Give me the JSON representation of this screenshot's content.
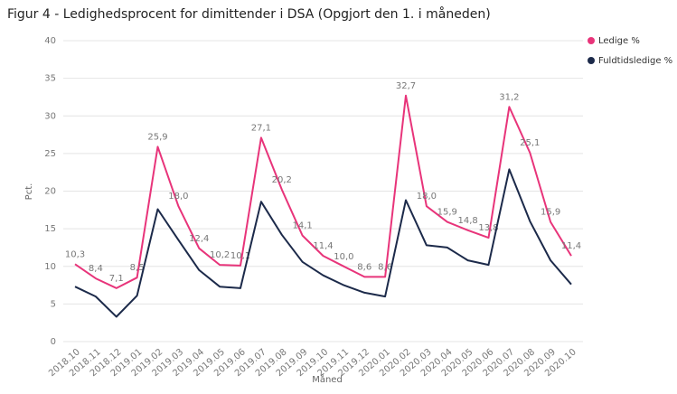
{
  "chart_data": {
    "type": "line",
    "title": "Figur 4 - Ledighedsprocent for dimittender i DSA (Opgjort den 1. i måneden)",
    "x_label": "Måned",
    "y_label": "Pct.",
    "categories": [
      "2018.10",
      "2018.11",
      "2018.12",
      "2019.01",
      "2019.02",
      "2019.03",
      "2019.04",
      "2019.05",
      "2019.06",
      "2019.07",
      "2019.08",
      "2019.09",
      "2019.10",
      "2019.11",
      "2019.12",
      "2020.01",
      "2020.02",
      "2020.03",
      "2020.04",
      "2020.05",
      "2020.06",
      "2020.07",
      "2020.08",
      "2020.09",
      "2020.10"
    ],
    "series": [
      {
        "name": "Ledige %",
        "color": "#e8347a",
        "values": [
          10.3,
          8.4,
          7.1,
          8.5,
          25.9,
          18.0,
          12.4,
          10.2,
          10.1,
          27.1,
          20.2,
          14.1,
          11.4,
          10.0,
          8.6,
          8.6,
          32.7,
          18.0,
          15.9,
          14.8,
          13.8,
          31.2,
          25.1,
          15.9,
          11.4
        ],
        "value_labels": [
          "10,3",
          "8,4",
          "7,1",
          "8,5",
          "25,9",
          "18,0",
          "12,4",
          "10,2",
          "10,1",
          "27,1",
          "20,2",
          "14,1",
          "11,4",
          "10,0",
          "8,6",
          "8,6",
          "32,7",
          "18,0",
          "15,9",
          "14,8",
          "13,8",
          "31,2",
          "25,1",
          "15,9",
          "11,4"
        ]
      },
      {
        "name": "Fuldtidsledige %",
        "color": "#1c2a4a",
        "values": [
          7.3,
          6.0,
          3.3,
          6.1,
          17.6,
          13.5,
          9.5,
          7.3,
          7.1,
          18.6,
          14.2,
          10.6,
          8.8,
          7.5,
          6.5,
          6.0,
          18.8,
          12.8,
          12.5,
          10.8,
          10.2,
          22.9,
          16.0,
          10.8,
          7.6
        ]
      }
    ],
    "ylim": [
      0,
      40
    ],
    "yticks": [
      0,
      5,
      10,
      15,
      20,
      25,
      30,
      35,
      40
    ],
    "grid": true,
    "legend": "top-right"
  }
}
